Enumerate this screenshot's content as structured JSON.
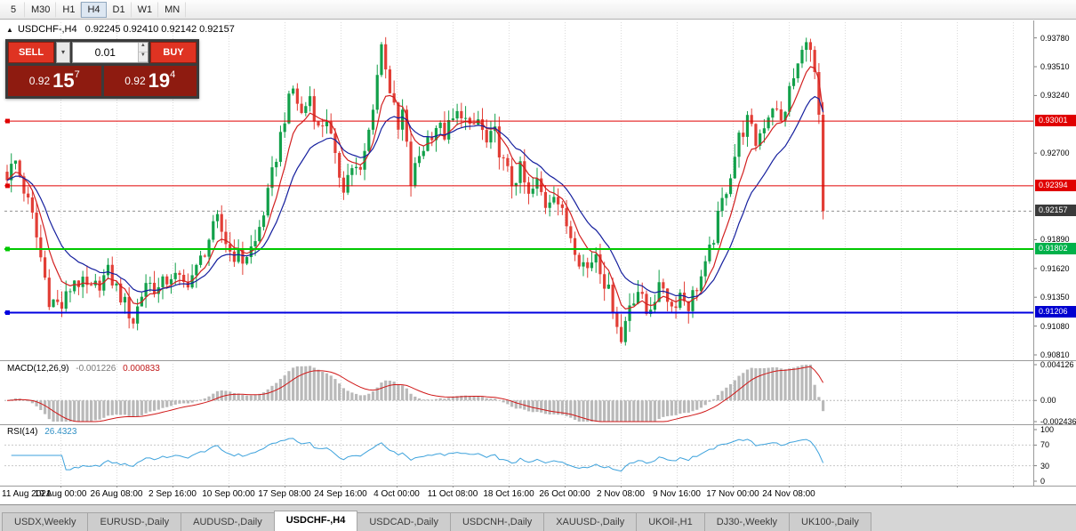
{
  "toolbar": {
    "timeframes": [
      {
        "label": "5",
        "active": false
      },
      {
        "label": "M30",
        "active": false
      },
      {
        "label": "H1",
        "active": false
      },
      {
        "label": "H4",
        "active": true
      },
      {
        "label": "D1",
        "active": false
      },
      {
        "label": "W1",
        "active": false
      },
      {
        "label": "MN",
        "active": false
      }
    ]
  },
  "chart": {
    "title_symbol": "USDCHF-,H4",
    "title_ohlc": "0.92245 0.92410 0.92142 0.92157",
    "current_price": "0.92157"
  },
  "trade_panel": {
    "sell_label": "SELL",
    "buy_label": "BUY",
    "volume": "0.01",
    "sell_quote": {
      "prefix": "0.92",
      "big": "15",
      "sup": "7"
    },
    "buy_quote": {
      "prefix": "0.92",
      "big": "19",
      "sup": "4"
    }
  },
  "price_scale": {
    "ticks": [
      "0.93780",
      "0.93510",
      "0.93240",
      "0.92700",
      "0.91890",
      "0.91620",
      "0.91350",
      "0.91080",
      "0.90810"
    ],
    "badges": [
      {
        "text": "0.93001",
        "color": "#e00000"
      },
      {
        "text": "0.92394",
        "color": "#e00000"
      },
      {
        "text": "0.92157",
        "color": "#3a3a3a"
      },
      {
        "text": "0.91802",
        "color": "#00b14a"
      },
      {
        "text": "0.91206",
        "color": "#0000d0"
      }
    ]
  },
  "levels": [
    {
      "price": 0.93001,
      "color": "#e00000",
      "width": 1
    },
    {
      "price": 0.92394,
      "color": "#e00000",
      "width": 1
    },
    {
      "price": 0.91802,
      "color": "#00c800",
      "width": 2
    },
    {
      "price": 0.91206,
      "color": "#0000e0",
      "width": 2
    }
  ],
  "indicators": {
    "macd": {
      "name": "MACD(12,26,9)",
      "value_main": "-0.001226",
      "value_signal": "0.000833",
      "scale": [
        "0.004126",
        "0.00",
        "-0.002436"
      ]
    },
    "rsi": {
      "name": "RSI(14)",
      "value": "26.4323",
      "levels": [
        70,
        30
      ],
      "scale": [
        "100",
        "70",
        "30",
        "0"
      ]
    }
  },
  "time_axis": [
    "11 Aug 2021",
    "19 Aug 00:00",
    "26 Aug 08:00",
    "2 Sep 16:00",
    "10 Sep 00:00",
    "17 Sep 08:00",
    "24 Sep 16:00",
    "4 Oct 00:00",
    "11 Oct 08:00",
    "18 Oct 16:00",
    "26 Oct 00:00",
    "2 Nov 08:00",
    "9 Nov 16:00",
    "17 Nov 00:00",
    "24 Nov 08:00"
  ],
  "tabs": [
    {
      "label": "USDX,Weekly",
      "active": false
    },
    {
      "label": "EURUSD-,Daily",
      "active": false
    },
    {
      "label": "AUDUSD-,Daily",
      "active": false
    },
    {
      "label": "USDCHF-,H4",
      "active": true
    },
    {
      "label": "USDCAD-,Daily",
      "active": false
    },
    {
      "label": "USDCNH-,Daily",
      "active": false
    },
    {
      "label": "XAUUSD-,Daily",
      "active": false
    },
    {
      "label": "UKOil-,H1",
      "active": false
    },
    {
      "label": "DJ30-,Weekly",
      "active": false
    },
    {
      "label": "UK100-,Daily",
      "active": false
    }
  ],
  "chart_data": {
    "type": "candlestick",
    "symbol": "USDCHF",
    "period": "H4",
    "ohlc_current": {
      "open": 0.92245,
      "high": 0.9241,
      "low": 0.92142,
      "close": 0.92157
    },
    "bid": "0.92157",
    "ask": "0.92194",
    "y_axis_range": [
      0.9076,
      0.9391
    ],
    "num_candles": 195,
    "close_waypoints": [
      [
        0,
        0.925
      ],
      [
        2,
        0.9262
      ],
      [
        6,
        0.921
      ],
      [
        10,
        0.9134
      ],
      [
        13,
        0.9126
      ],
      [
        16,
        0.9152
      ],
      [
        20,
        0.914
      ],
      [
        24,
        0.9158
      ],
      [
        27,
        0.9136
      ],
      [
        30,
        0.9113
      ],
      [
        33,
        0.915
      ],
      [
        36,
        0.9142
      ],
      [
        39,
        0.9156
      ],
      [
        42,
        0.9147
      ],
      [
        45,
        0.916
      ],
      [
        48,
        0.919
      ],
      [
        50,
        0.9206
      ],
      [
        53,
        0.9178
      ],
      [
        56,
        0.917
      ],
      [
        59,
        0.9186
      ],
      [
        62,
        0.923
      ],
      [
        64,
        0.9268
      ],
      [
        66,
        0.9305
      ],
      [
        68,
        0.933
      ],
      [
        70,
        0.9306
      ],
      [
        72,
        0.9324
      ],
      [
        74,
        0.9292
      ],
      [
        76,
        0.9304
      ],
      [
        78,
        0.9262
      ],
      [
        80,
        0.924
      ],
      [
        82,
        0.9258
      ],
      [
        84,
        0.925
      ],
      [
        86,
        0.929
      ],
      [
        88,
        0.9344
      ],
      [
        89,
        0.9372
      ],
      [
        90,
        0.9354
      ],
      [
        91,
        0.933
      ],
      [
        93,
        0.929
      ],
      [
        94,
        0.9308
      ],
      [
        96,
        0.9242
      ],
      [
        98,
        0.9268
      ],
      [
        100,
        0.9284
      ],
      [
        102,
        0.9296
      ],
      [
        104,
        0.9288
      ],
      [
        106,
        0.93
      ],
      [
        108,
        0.931
      ],
      [
        110,
        0.929
      ],
      [
        112,
        0.9301
      ],
      [
        114,
        0.9278
      ],
      [
        116,
        0.9288
      ],
      [
        118,
        0.926
      ],
      [
        120,
        0.9242
      ],
      [
        122,
        0.9254
      ],
      [
        124,
        0.9228
      ],
      [
        126,
        0.9242
      ],
      [
        128,
        0.9222
      ],
      [
        130,
        0.9236
      ],
      [
        132,
        0.9212
      ],
      [
        134,
        0.9194
      ],
      [
        136,
        0.9172
      ],
      [
        138,
        0.9162
      ],
      [
        140,
        0.9178
      ],
      [
        142,
        0.915
      ],
      [
        144,
        0.9128
      ],
      [
        146,
        0.9096
      ],
      [
        148,
        0.913
      ],
      [
        150,
        0.9142
      ],
      [
        152,
        0.912
      ],
      [
        154,
        0.9136
      ],
      [
        156,
        0.9146
      ],
      [
        158,
        0.9126
      ],
      [
        160,
        0.9139
      ],
      [
        162,
        0.9128
      ],
      [
        164,
        0.9146
      ],
      [
        166,
        0.9162
      ],
      [
        168,
        0.9192
      ],
      [
        170,
        0.9224
      ],
      [
        172,
        0.9252
      ],
      [
        174,
        0.9284
      ],
      [
        176,
        0.93
      ],
      [
        178,
        0.928
      ],
      [
        180,
        0.9298
      ],
      [
        182,
        0.9316
      ],
      [
        184,
        0.9298
      ],
      [
        186,
        0.9328
      ],
      [
        188,
        0.9352
      ],
      [
        190,
        0.9374
      ],
      [
        191,
        0.9362
      ],
      [
        192,
        0.9346
      ],
      [
        193,
        0.9306
      ],
      [
        194,
        0.92157
      ]
    ],
    "colors": {
      "up": "#12a04a",
      "down": "#e23e36",
      "ma_fast": "#d21f1f",
      "ma_slow": "#151f9e",
      "macd_hist": "#b9b9b9",
      "macd_signal": "#d01818",
      "rsi": "#3da2dc",
      "grid": "#dadada"
    }
  }
}
